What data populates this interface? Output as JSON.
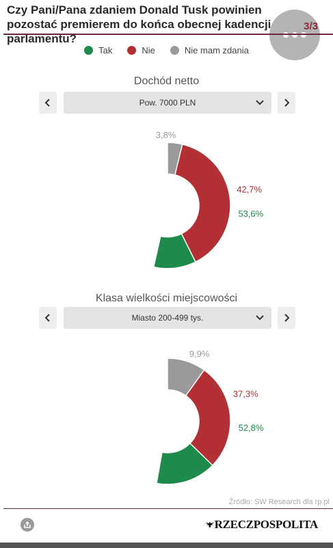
{
  "header": {
    "title": "Czy Pani/Pana zdaniem Donald Tusk powinien pozostać premierem do końca obecnej kadencji parlamentu?",
    "page_indicator": "3/3"
  },
  "legend": [
    {
      "label": "Tak",
      "color": "#1e8a4c"
    },
    {
      "label": "Nie",
      "color": "#b23034"
    },
    {
      "label": "Nie mam zdania",
      "color": "#9a9a9a"
    }
  ],
  "colors": {
    "accent": "#6e2a3a"
  },
  "sections": [
    {
      "title": "Dochód netto",
      "selected": "Pow. 7000 PLN",
      "prev_icon": "chevron-left-icon",
      "next_icon": "chevron-right-icon"
    },
    {
      "title": "Klasa wielkości miejscowości",
      "selected": "Miasto 200-499 tys.",
      "prev_icon": "chevron-left-icon",
      "next_icon": "chevron-right-icon"
    }
  ],
  "chart_data": [
    {
      "type": "pie",
      "title": "Dochód netto",
      "categories": [
        "Tak",
        "Nie",
        "Nie mam zdania"
      ],
      "values": [
        53.6,
        42.7,
        3.8
      ],
      "labels": [
        "53,6%",
        "42,7%",
        "3,8%"
      ],
      "colors": [
        "#1e8a4c",
        "#b23034",
        "#9a9a9a"
      ]
    },
    {
      "type": "pie",
      "title": "Klasa wielkości miejscowości",
      "categories": [
        "Tak",
        "Nie",
        "Nie mam zdania"
      ],
      "values": [
        52.8,
        37.3,
        9.9
      ],
      "labels": [
        "52,8%",
        "37,3%",
        "9,9%"
      ],
      "colors": [
        "#1e8a4c",
        "#b23034",
        "#9a9a9a"
      ]
    }
  ],
  "footer": {
    "source": "Źródło: SW Research dla rp.pl",
    "logo": "RZECZPOSPOLITA"
  }
}
